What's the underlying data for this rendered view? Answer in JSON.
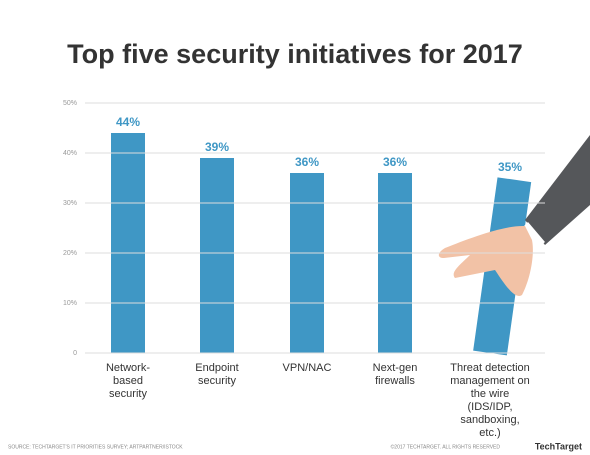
{
  "chart_data": {
    "type": "bar",
    "title": "Top five security initiatives for 2017",
    "categories": [
      "Network-based security",
      "Endpoint security",
      "VPN/NAC",
      "Next-gen firewalls",
      "Threat detection management on the wire (IDS/IDP, sandboxing, etc.)"
    ],
    "values": [
      44,
      39,
      36,
      36,
      35
    ],
    "value_labels": [
      "44%",
      "39%",
      "36%",
      "36%",
      "35%"
    ],
    "color": "#3f97c5",
    "ylim": [
      0,
      50
    ],
    "yticks": [
      0,
      {
        "value": 10,
        "label": "10%"
      },
      {
        "value": 20,
        "label": "20%"
      },
      {
        "value": 30,
        "label": "30%"
      },
      {
        "value": 40,
        "label": "40%"
      },
      {
        "value": 50,
        "label": "50%"
      }
    ],
    "grid": true,
    "source": "SOURCE: TECHTARGET'S IT PRIORITIES SURVEY; ARTPARTNER/ISTOCK",
    "copyright": "©2017 TECHTARGET. ALL RIGHTS RESERVED",
    "brand": "TechTarget"
  }
}
